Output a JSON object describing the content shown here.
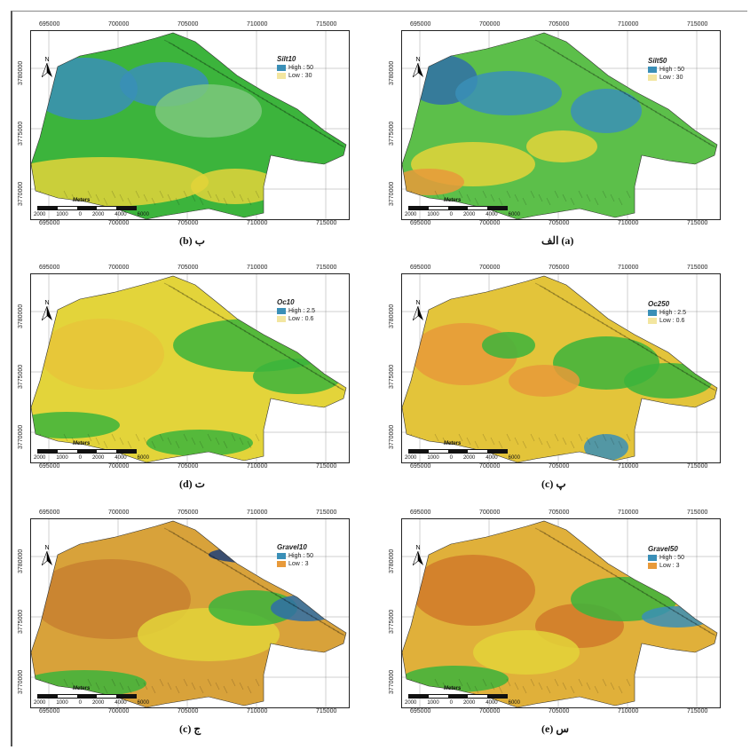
{
  "x_ticks": [
    "695000",
    "700000",
    "705000",
    "710000",
    "715000"
  ],
  "y_ticks": [
    "3780000",
    "3775000",
    "3770000"
  ],
  "scale": {
    "unit": "Meters",
    "ticks": [
      "2000",
      "1000",
      "0",
      "2000",
      "4000",
      "6000"
    ]
  },
  "north_label": "N",
  "panels": [
    {
      "id": "b",
      "legend_title": "Silt10",
      "high": "High : 50",
      "low": "Low : 30",
      "caption": "(b) ب",
      "style": "silt10"
    },
    {
      "id": "a",
      "legend_title": "Silt50",
      "high": "High : 50",
      "low": "Low : 30",
      "caption": "الف (a)",
      "style": "silt50"
    },
    {
      "id": "d",
      "legend_title": "Oc10",
      "high": "High : 2.5",
      "low": "Low : 0.6",
      "caption": "(d) ت",
      "style": "oc10"
    },
    {
      "id": "c2",
      "legend_title": "Oc250",
      "high": "High : 2.5",
      "low": "Low : 0.6",
      "caption": "(c) پ",
      "style": "oc250"
    },
    {
      "id": "c",
      "legend_title": "Gravel10",
      "high": "High : 50",
      "low": "Low : 3",
      "caption": "(c) ج",
      "style": "gravel10"
    },
    {
      "id": "e",
      "legend_title": "Gravel50",
      "high": "High : 50",
      "low": "Low : 3",
      "caption": "(e) س",
      "style": "gravel50"
    }
  ],
  "colors": {
    "high": "#3a8fb7",
    "mid": "#3cb43c",
    "low_yellow": "#e3d43a",
    "low_orange": "#e89a3a"
  }
}
